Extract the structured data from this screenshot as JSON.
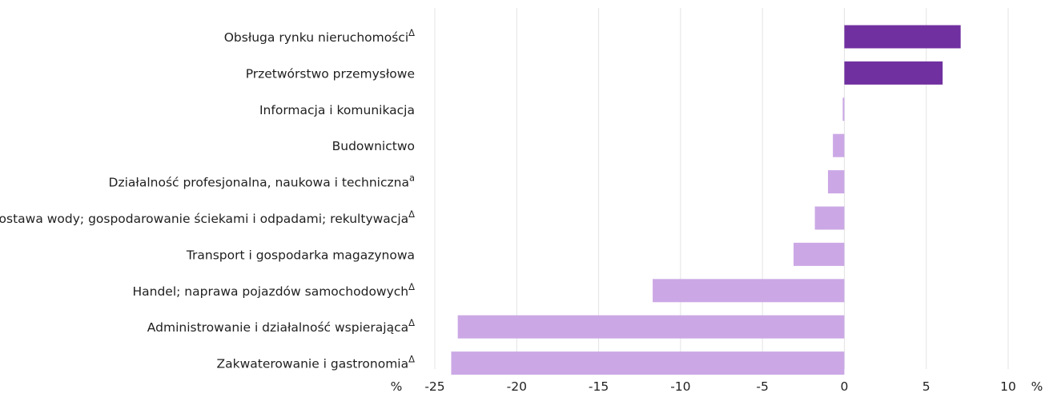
{
  "chart_data": {
    "type": "bar",
    "orientation": "horizontal",
    "categories": [
      "Obsługa rynku nieruchomości",
      "Przetwórstwo przemysłowe",
      "Informacja i komunikacja",
      "Budownictwo",
      "Działalność profesjonalna, naukowa i techniczna",
      "Dostawa wody; gospodarowanie ściekami i odpadami; rekultywacja",
      "Transport i gospodarka magazynowa",
      "Handel; naprawa pojazdów samochodowych",
      "Administrowanie i działalność wspierająca",
      "Zakwaterowanie i gastronomia"
    ],
    "superscripts": [
      "Δ",
      "",
      "",
      "",
      "a",
      "Δ",
      "",
      "Δ",
      "Δ",
      "Δ"
    ],
    "values": [
      7.1,
      6.0,
      -0.1,
      -0.7,
      -1.0,
      -1.8,
      -3.1,
      -11.7,
      -23.6,
      -24.0
    ],
    "highlight": [
      true,
      true,
      false,
      false,
      false,
      false,
      false,
      false,
      false,
      false
    ],
    "xlim": [
      -25,
      10
    ],
    "xticks": [
      "-25",
      "-20",
      "-15",
      "-10",
      "-5",
      "0",
      "5",
      "10"
    ],
    "xunit_left": "%",
    "xunit_right": "%",
    "grid": "vertical",
    "colors": {
      "positive": "#7030a0",
      "negative": "#cba8e5",
      "text": "#1f1f1f",
      "grid": "#e3e3e3"
    }
  }
}
